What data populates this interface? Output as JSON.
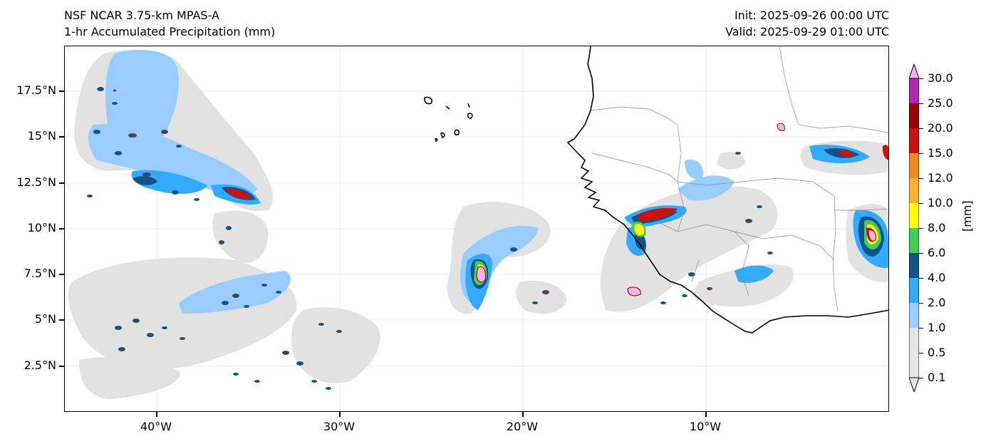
{
  "header": {
    "model": "NSF NCAR 3.75-km MPAS-A",
    "field": "1-hr Accumulated Precipitation (mm)",
    "init": "Init: 2025-09-26 00:00 UTC",
    "valid": "Valid: 2025-09-29 01:00 UTC"
  },
  "map": {
    "lat_ticks": [
      "17.5°N",
      "15°N",
      "12.5°N",
      "10°N",
      "7.5°N",
      "5°N",
      "2.5°N"
    ],
    "lon_ticks": [
      "40°W",
      "30°W",
      "20°W",
      "10°W"
    ],
    "colors": {
      "light_gray": "#e0e0e0",
      "light_blue": "#99ccff",
      "blue": "#33aaff",
      "dark_blue": "#114477",
      "green": "#44cc55",
      "yellow": "#ffff00",
      "red": "#cc1111",
      "dark_red": "#990000",
      "pink": "#ffb0e8",
      "coast": "#000000",
      "border": "#888888"
    }
  },
  "colorbar": {
    "unit": "[mm]",
    "levels": [
      "0.1",
      "0.5",
      "1.0",
      "2.0",
      "4.0",
      "6.0",
      "8.0",
      "10.0",
      "12.0",
      "15.0",
      "20.0",
      "25.0",
      "30.0"
    ],
    "colors": [
      "#e6e6e6",
      "#99ccff",
      "#33aaff",
      "#115588",
      "#44cc55",
      "#ffff00",
      "#ffb02e",
      "#f08c1e",
      "#cc1111",
      "#990000",
      "#b22ab2",
      "#ffb0f0"
    ]
  }
}
